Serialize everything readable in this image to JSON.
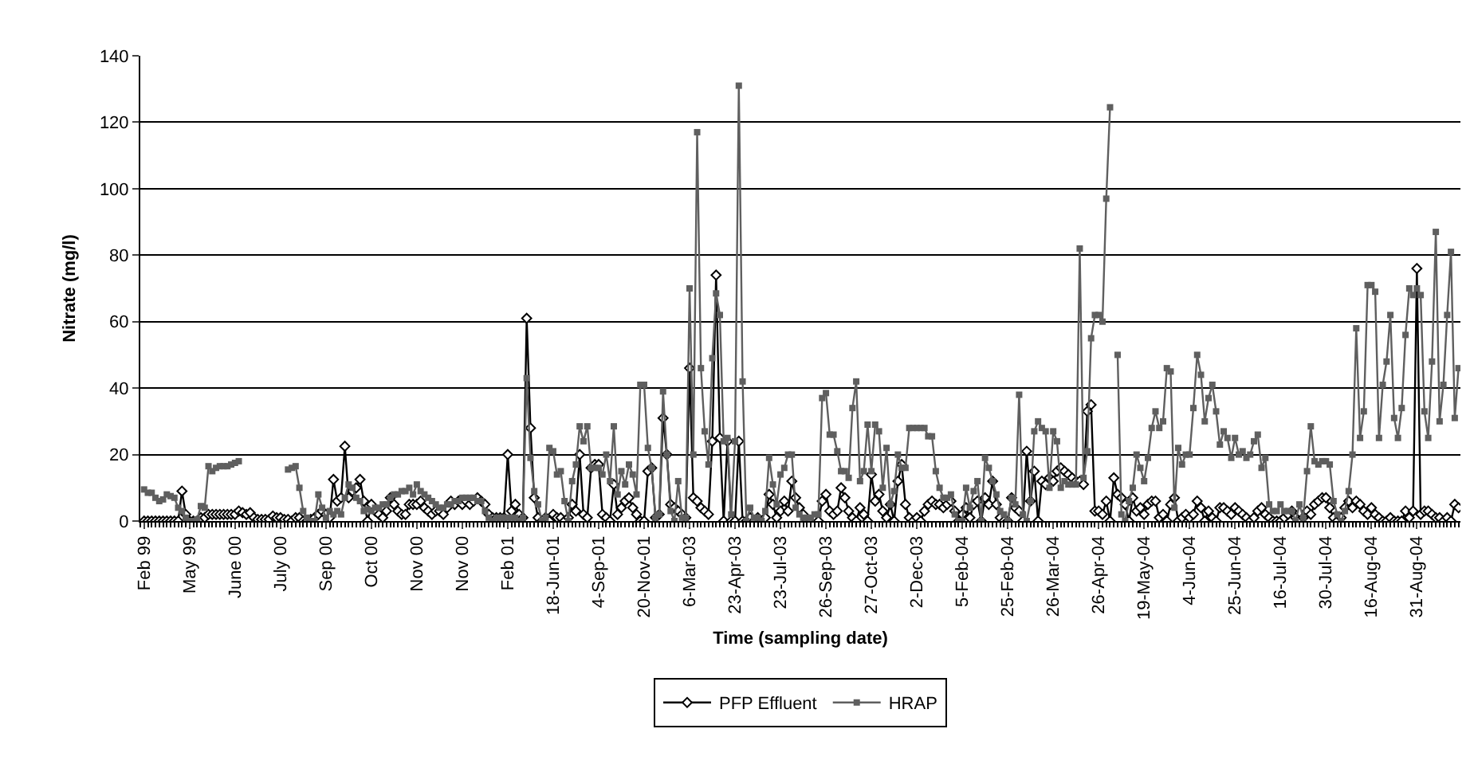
{
  "chart_data": {
    "type": "line",
    "xlabel": "Time (sampling date)",
    "ylabel": "Nitrate (mg/l)",
    "categories": [
      "Feb 99",
      null,
      null,
      null,
      null,
      null,
      null,
      null,
      null,
      null,
      null,
      null,
      "May 99",
      null,
      null,
      null,
      null,
      null,
      null,
      null,
      null,
      null,
      null,
      null,
      "June 00",
      null,
      null,
      null,
      null,
      null,
      null,
      null,
      null,
      null,
      null,
      null,
      "July 00",
      null,
      null,
      null,
      null,
      null,
      null,
      null,
      null,
      null,
      null,
      null,
      "Sep 00",
      null,
      null,
      null,
      null,
      null,
      null,
      null,
      null,
      null,
      null,
      null,
      "Oct 00",
      null,
      null,
      null,
      null,
      null,
      null,
      null,
      null,
      null,
      null,
      null,
      "Nov 00",
      null,
      null,
      null,
      null,
      null,
      null,
      null,
      null,
      null,
      null,
      null,
      "Nov 00",
      null,
      null,
      null,
      null,
      null,
      null,
      null,
      null,
      null,
      null,
      null,
      "Feb 01",
      null,
      null,
      null,
      null,
      null,
      null,
      null,
      null,
      null,
      null,
      null,
      "18-Jun-01",
      null,
      null,
      null,
      null,
      null,
      null,
      null,
      null,
      null,
      null,
      null,
      "4-Sep-01",
      null,
      null,
      null,
      null,
      null,
      null,
      null,
      null,
      null,
      null,
      null,
      "20-Nov-01",
      null,
      null,
      null,
      null,
      null,
      null,
      null,
      null,
      null,
      null,
      null,
      "6-Mar-03",
      null,
      null,
      null,
      null,
      null,
      null,
      null,
      null,
      null,
      null,
      null,
      "23-Apr-03",
      null,
      null,
      null,
      null,
      null,
      null,
      null,
      null,
      null,
      null,
      null,
      "23-Jul-03",
      null,
      null,
      null,
      null,
      null,
      null,
      null,
      null,
      null,
      null,
      null,
      "26-Sep-03",
      null,
      null,
      null,
      null,
      null,
      null,
      null,
      null,
      null,
      null,
      null,
      "27-Oct-03",
      null,
      null,
      null,
      null,
      null,
      null,
      null,
      null,
      null,
      null,
      null,
      "2-Dec-03",
      null,
      null,
      null,
      null,
      null,
      null,
      null,
      null,
      null,
      null,
      null,
      "5-Feb-04",
      null,
      null,
      null,
      null,
      null,
      null,
      null,
      null,
      null,
      null,
      null,
      "25-Feb-04",
      null,
      null,
      null,
      null,
      null,
      null,
      null,
      null,
      null,
      null,
      null,
      "26-Mar-04",
      null,
      null,
      null,
      null,
      null,
      null,
      null,
      null,
      null,
      null,
      null,
      "26-Apr-04",
      null,
      null,
      null,
      null,
      null,
      null,
      null,
      null,
      null,
      null,
      null,
      "19-May-04",
      null,
      null,
      null,
      null,
      null,
      null,
      null,
      null,
      null,
      null,
      null,
      "4-Jun-04",
      null,
      null,
      null,
      null,
      null,
      null,
      null,
      null,
      null,
      null,
      null,
      "25-Jun-04",
      null,
      null,
      null,
      null,
      null,
      null,
      null,
      null,
      null,
      null,
      null,
      "16-Jul-04",
      null,
      null,
      null,
      null,
      null,
      null,
      null,
      null,
      null,
      null,
      null,
      "30-Jul-04",
      null,
      null,
      null,
      null,
      null,
      null,
      null,
      null,
      null,
      null,
      null,
      "16-Aug-04",
      null,
      null,
      null,
      null,
      null,
      null,
      null,
      null,
      null,
      null,
      null,
      "31-Aug-04",
      null,
      null,
      null,
      null,
      null,
      null,
      null,
      null,
      null,
      null,
      null
    ],
    "series": [
      {
        "name": "PFP Effluent",
        "color": "#000000",
        "marker": "diamond",
        "values": [
          0,
          0,
          0,
          0,
          0,
          0,
          0,
          0,
          0,
          0,
          9,
          2,
          0,
          0,
          0,
          1,
          1,
          2,
          2,
          2,
          2,
          2,
          2,
          2,
          2,
          3,
          2.5,
          2,
          2.5,
          1,
          0.5,
          0.5,
          0.5,
          0.5,
          1.5,
          1,
          1,
          0.5,
          0.5,
          0,
          1,
          1,
          0,
          0,
          0.5,
          1,
          2,
          3,
          2,
          1,
          12.5,
          6,
          7,
          22.5,
          7,
          9,
          10,
          12.5,
          6,
          0,
          5,
          3,
          2,
          1,
          3,
          7,
          5,
          3,
          2,
          2,
          5,
          5,
          5,
          6,
          4,
          3,
          2,
          3,
          3,
          2,
          4,
          6,
          5,
          6,
          5,
          6,
          5,
          6,
          7,
          6,
          5,
          2,
          1,
          1,
          1,
          1,
          20,
          3,
          5,
          2,
          1,
          61,
          28,
          7,
          1,
          0,
          1,
          0,
          2,
          1,
          1,
          0,
          1,
          5,
          3,
          20,
          2,
          1,
          16,
          17,
          17,
          2,
          1,
          0,
          11,
          2,
          4,
          6,
          7,
          4,
          2,
          0,
          0,
          15,
          16,
          1,
          2,
          31,
          20,
          5,
          4,
          3,
          2,
          1,
          46,
          7,
          6,
          4,
          3,
          2,
          24,
          74,
          25,
          0,
          24,
          0,
          0,
          24,
          0,
          0,
          1,
          0,
          1,
          0,
          1,
          8,
          5,
          1,
          3,
          6,
          3,
          12,
          7,
          4,
          2,
          0,
          0,
          1,
          0,
          6,
          8,
          3,
          2,
          3,
          10,
          7,
          3,
          1,
          0,
          4,
          2,
          0,
          14,
          6,
          8,
          3,
          1,
          5,
          0,
          12,
          17,
          5,
          1,
          0,
          1,
          0,
          3,
          5,
          6,
          5,
          5,
          4,
          5,
          6,
          3,
          0,
          2,
          4,
          1,
          5,
          6,
          0,
          7,
          5,
          12,
          5,
          1,
          0,
          0,
          7,
          4,
          3,
          0,
          21,
          6,
          15,
          0,
          12,
          11,
          13,
          12,
          15,
          16,
          15,
          14,
          13,
          12,
          12,
          11,
          33,
          35,
          3,
          3,
          2,
          6,
          0,
          13,
          8,
          7,
          5,
          0,
          7,
          3,
          4,
          2,
          5,
          6,
          6,
          1,
          2,
          0,
          5,
          7,
          0,
          1,
          2,
          1,
          2,
          6,
          4,
          0,
          3,
          1,
          0,
          4,
          4,
          3,
          2,
          4,
          3,
          2,
          1,
          0,
          1,
          3,
          4,
          2,
          1,
          0,
          0,
          0,
          1,
          2,
          3,
          1,
          0,
          1,
          3,
          2,
          5,
          6,
          7,
          7,
          4,
          1,
          0,
          1,
          4,
          6,
          4,
          6,
          5,
          3,
          2,
          4,
          2,
          1,
          0,
          0,
          1,
          0,
          0,
          0,
          3,
          1,
          3,
          76,
          2,
          3,
          3,
          2,
          1,
          1,
          0,
          1,
          0,
          5,
          4
        ]
      },
      {
        "name": "HRAP",
        "color": "#5f5f5f",
        "marker": "square",
        "values": [
          9.5,
          8.5,
          8.5,
          7,
          6,
          6.5,
          8,
          7.5,
          7,
          4,
          3,
          1,
          0,
          0,
          0.5,
          4.5,
          4,
          16.5,
          15,
          16,
          16.5,
          16.5,
          16.5,
          17,
          17.5,
          18,
          null,
          null,
          null,
          null,
          null,
          null,
          null,
          null,
          null,
          null,
          null,
          null,
          15.5,
          16,
          16.5,
          10,
          3,
          1,
          0,
          0,
          8,
          4,
          1,
          3,
          2,
          3,
          2,
          7,
          11,
          10,
          7,
          6,
          3,
          3.5,
          3,
          4,
          4,
          5,
          5,
          7,
          8,
          8,
          9,
          9,
          10,
          8,
          11,
          9,
          8,
          7,
          6,
          5,
          4,
          4,
          5,
          5,
          6,
          6,
          7,
          7,
          7,
          7,
          6,
          6,
          3,
          1,
          0,
          1,
          1,
          1,
          1,
          1,
          1,
          0,
          1,
          43,
          19,
          9,
          5,
          0,
          1,
          22,
          21,
          14,
          15,
          6,
          0,
          12,
          17,
          28.5,
          24,
          28.5,
          16,
          16,
          16,
          14,
          20,
          12,
          28.5,
          8,
          15,
          11,
          17,
          14,
          8,
          41,
          41,
          22,
          16,
          1,
          2,
          39,
          20,
          3,
          0,
          12,
          1,
          1,
          70,
          20,
          117,
          46,
          27,
          17,
          49,
          68.5,
          62,
          24,
          25,
          2,
          24,
          131,
          42,
          0,
          4,
          1,
          1,
          0,
          3,
          19,
          11,
          5,
          14,
          16,
          20,
          20,
          4,
          2,
          1,
          1,
          1,
          2,
          2,
          37,
          38.5,
          26,
          26,
          21,
          15,
          15,
          13,
          34,
          42,
          12,
          15,
          29,
          15,
          29,
          27,
          10,
          22,
          5,
          9,
          20,
          16,
          16,
          28,
          28,
          28,
          28,
          28,
          25.5,
          25.5,
          15,
          10,
          7,
          7,
          8,
          2,
          0,
          0,
          10,
          4,
          9,
          12,
          0,
          19,
          16,
          12,
          8,
          3,
          2,
          0,
          7,
          5,
          38,
          2,
          0,
          6,
          27,
          30,
          28,
          27,
          10,
          27,
          24,
          10,
          12,
          11,
          11,
          11,
          82,
          13,
          21,
          55,
          62,
          62,
          60,
          97,
          124.5,
          null,
          50,
          2,
          0,
          6,
          10,
          20,
          16,
          12,
          19,
          28,
          33,
          28,
          30,
          46,
          45,
          4,
          22,
          17,
          20,
          20,
          34,
          50,
          44,
          30,
          37,
          41,
          33,
          23,
          27,
          25,
          19,
          25,
          20,
          21,
          19,
          20,
          24,
          26,
          16,
          19,
          5,
          3,
          3,
          5,
          3,
          3,
          3,
          0,
          5,
          1,
          15,
          28.5,
          18,
          17,
          18,
          18,
          17,
          6,
          2,
          0,
          3,
          9,
          20,
          58,
          25,
          33,
          71,
          71,
          69,
          25,
          41,
          48,
          62,
          31,
          25,
          34,
          56,
          70,
          68,
          70,
          68,
          33,
          25,
          48,
          87,
          30,
          41,
          62,
          81,
          31,
          46
        ]
      }
    ],
    "ylim": [
      0,
      140
    ],
    "yticks": [
      0,
      20,
      40,
      60,
      80,
      100,
      120,
      140
    ],
    "grid": "y",
    "legend": "bottom",
    "line_style": "solid"
  }
}
